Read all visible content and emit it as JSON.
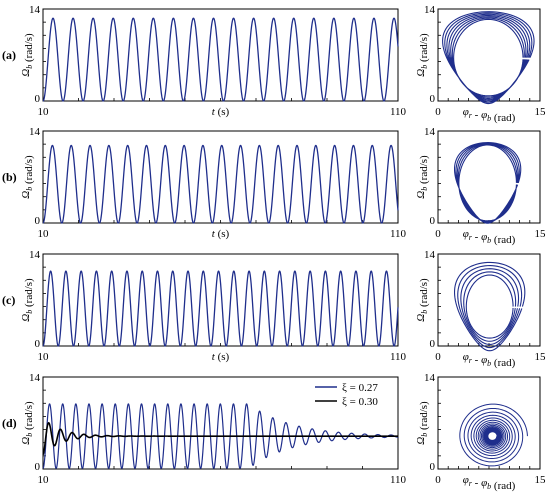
{
  "panels": [
    {
      "label": "(a)",
      "time_plot": {
        "xlim": [
          10,
          110
        ],
        "ylim": [
          0,
          14
        ],
        "x_ticks": [
          "10",
          "110"
        ],
        "y_ticks": [
          "0",
          "14"
        ],
        "xlabel": "t (s)",
        "ylabel": "Ω_b (rad/s)"
      },
      "phase_plot": {
        "xlim": [
          0,
          15
        ],
        "ylim": [
          0,
          14
        ],
        "x_ticks": [
          "0",
          "15"
        ],
        "y_ticks": [
          "0",
          "14"
        ],
        "xlabel": "φ_r - φ_b (rad)",
        "ylabel": "Ω_b (rad/s)"
      }
    },
    {
      "label": "(b)",
      "time_plot": {
        "xlim": [
          10,
          110
        ],
        "ylim": [
          0,
          14
        ],
        "x_ticks": [
          "10",
          "110"
        ],
        "y_ticks": [
          "0",
          "14"
        ],
        "xlabel": "t (s)",
        "ylabel": "Ω_b (rad/s)"
      },
      "phase_plot": {
        "xlim": [
          0,
          15
        ],
        "ylim": [
          0,
          14
        ],
        "x_ticks": [
          "0",
          "15"
        ],
        "y_ticks": [
          "0",
          "14"
        ],
        "xlabel": "φ_r - φ_b (rad)",
        "ylabel": "Ω_b (rad/s)"
      }
    },
    {
      "label": "(c)",
      "time_plot": {
        "xlim": [
          10,
          110
        ],
        "ylim": [
          0,
          14
        ],
        "x_ticks": [
          "10",
          "110"
        ],
        "y_ticks": [
          "0",
          "14"
        ],
        "xlabel": "t (s)",
        "ylabel": "Ω_b (rad/s)"
      },
      "phase_plot": {
        "xlim": [
          0,
          15
        ],
        "ylim": [
          0,
          14
        ],
        "x_ticks": [
          "0",
          "15"
        ],
        "y_ticks": [
          "0",
          "14"
        ],
        "xlabel": "φ_r - φ_b (rad)",
        "ylabel": "Ω_b (rad/s)"
      }
    },
    {
      "label": "(d)",
      "time_plot": {
        "xlim": [
          10,
          110
        ],
        "ylim": [
          0,
          14
        ],
        "x_ticks": [
          "10",
          "110"
        ],
        "y_ticks": [
          "0",
          "14"
        ],
        "xlabel": "",
        "ylabel": "Ω_b (rad/s)"
      },
      "phase_plot": {
        "xlim": [
          0,
          15
        ],
        "ylim": [
          0,
          14
        ],
        "x_ticks": [
          "0",
          "15"
        ],
        "y_ticks": [
          "0",
          "14"
        ],
        "xlabel": "φ_r - φ_b (rad)",
        "ylabel": "Ω_b (rad/s)"
      },
      "legend": [
        {
          "name": "ξ = 0.27",
          "color": "#1f2e8c"
        },
        {
          "name": "ξ = 0.30",
          "color": "#000000"
        }
      ]
    }
  ],
  "chart_data": [
    {
      "type": "line",
      "panel": "(a)",
      "series": [
        {
          "name": "",
          "color": "#1f2e8c",
          "description_values": {
            "period_s": 5.65,
            "min": 0,
            "max": 12.6,
            "t_start": 10,
            "t_end": 110
          }
        }
      ],
      "xlabel": "t (s)",
      "ylabel": "Ω_b (rad/s)",
      "xlim": [
        10,
        110
      ],
      "ylim": [
        0,
        14
      ]
    },
    {
      "type": "line",
      "panel": "(a) phase",
      "series": [
        {
          "name": "",
          "color": "#1f2e8c",
          "description_values": {
            "x_range": [
              1.8,
              13.2
            ],
            "y_range": [
              0,
              13.3
            ]
          }
        }
      ],
      "xlabel": "φ_r - φ_b (rad)",
      "ylabel": "Ω_b (rad/s)",
      "xlim": [
        0,
        15
      ],
      "ylim": [
        0,
        14
      ]
    },
    {
      "type": "line",
      "panel": "(b)",
      "series": [
        {
          "name": "",
          "color": "#1f2e8c",
          "description_values": {
            "period_s": 5.3,
            "min": 0,
            "max": 11.8,
            "t_start": 10,
            "t_end": 110
          }
        }
      ],
      "xlabel": "t (s)",
      "ylabel": "Ω_b (rad/s)",
      "xlim": [
        10,
        110
      ],
      "ylim": [
        0,
        14
      ]
    },
    {
      "type": "line",
      "panel": "(b) phase",
      "series": [
        {
          "name": "",
          "color": "#1f2e8c",
          "description_values": {
            "x_range": [
              2.9,
              11.8
            ],
            "y_range": [
              0,
              12.2
            ]
          }
        }
      ],
      "xlabel": "φ_r - φ_b (rad)",
      "ylabel": "Ω_b (rad/s)",
      "xlim": [
        0,
        15
      ],
      "ylim": [
        0,
        14
      ]
    },
    {
      "type": "line",
      "panel": "(c)",
      "series": [
        {
          "name": "",
          "color": "#1f2e8c",
          "description_values": {
            "period_s": 4.3,
            "min": 0,
            "max": 11.4,
            "t_start": 10,
            "t_end": 110
          }
        }
      ],
      "xlabel": "t (s)",
      "ylabel": "Ω_b (rad/s)",
      "xlim": [
        10,
        110
      ],
      "ylim": [
        0,
        14
      ]
    },
    {
      "type": "line",
      "panel": "(c) phase",
      "series": [
        {
          "name": "",
          "color": "#1f2e8c",
          "description_values": {
            "x_range": [
              3.2,
              11.9
            ],
            "y_range": [
              0,
              12.0
            ]
          }
        }
      ],
      "xlabel": "φ_r - φ_b (rad)",
      "ylabel": "Ω_b (rad/s)",
      "xlim": [
        0,
        15
      ],
      "ylim": [
        0,
        14
      ]
    },
    {
      "type": "line",
      "panel": "(d)",
      "series": [
        {
          "name": "ξ = 0.27",
          "color": "#1f2e8c",
          "description_values": {
            "period_s": 3.7,
            "early_max": 9.8,
            "steady_value": 5.0,
            "decays_after_t": 70
          }
        },
        {
          "name": "ξ = 0.30",
          "color": "#000000",
          "description_values": {
            "first_peak": 7.5,
            "steady_value": 5.0,
            "settles_by_t": 30
          }
        }
      ],
      "xlabel": "",
      "ylabel": "Ω_b (rad/s)",
      "xlim": [
        10,
        110
      ],
      "ylim": [
        0,
        14
      ]
    },
    {
      "type": "line",
      "panel": "(d) phase",
      "series": [
        {
          "name": "",
          "color": "#1f2e8c",
          "description_values": {
            "x_range": [
              3.0,
              12.5
            ],
            "y_range": [
              0.3,
              10.0
            ],
            "spiral_center": [
              8.0,
              5.0
            ]
          }
        }
      ],
      "xlabel": "φ_r - φ_b (rad)",
      "ylabel": "Ω_b (rad/s)",
      "xlim": [
        0,
        15
      ],
      "ylim": [
        0,
        14
      ]
    }
  ]
}
